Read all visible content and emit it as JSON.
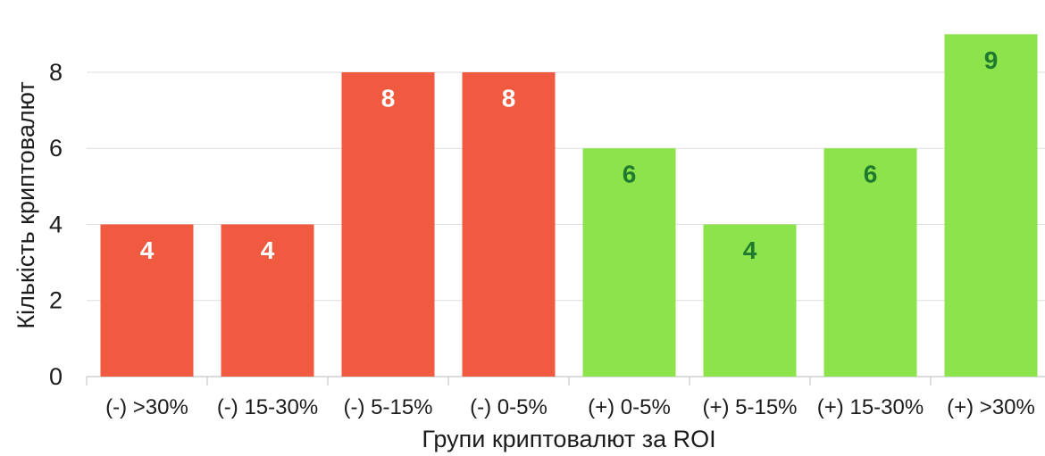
{
  "chart_data": {
    "type": "bar",
    "categories": [
      "(-) >30%",
      "(-) 15-30%",
      "(-) 5-15%",
      "(-) 0-5%",
      "(+) 0-5%",
      "(+) 5-15%",
      "(+) 15-30%",
      "(+) >30%"
    ],
    "values": [
      4,
      4,
      8,
      8,
      6,
      4,
      6,
      9
    ],
    "xlabel": "Групи криптовалют за ROI",
    "ylabel": "Кількість криптовалют",
    "yticks": [
      0,
      2,
      4,
      6,
      8
    ],
    "ylim": [
      0,
      9.9
    ],
    "grid": true,
    "data_labels": true,
    "bar_colors": [
      "#F05A40",
      "#F05A40",
      "#F05A40",
      "#F05A40",
      "#8DE34B",
      "#8DE34B",
      "#8DE34B",
      "#8DE34B"
    ],
    "label_colors": [
      "#FFFFFF",
      "#FFFFFF",
      "#FFFFFF",
      "#FFFFFF",
      "#1F7A2E",
      "#1F7A2E",
      "#1F7A2E",
      "#1F7A2E"
    ]
  }
}
